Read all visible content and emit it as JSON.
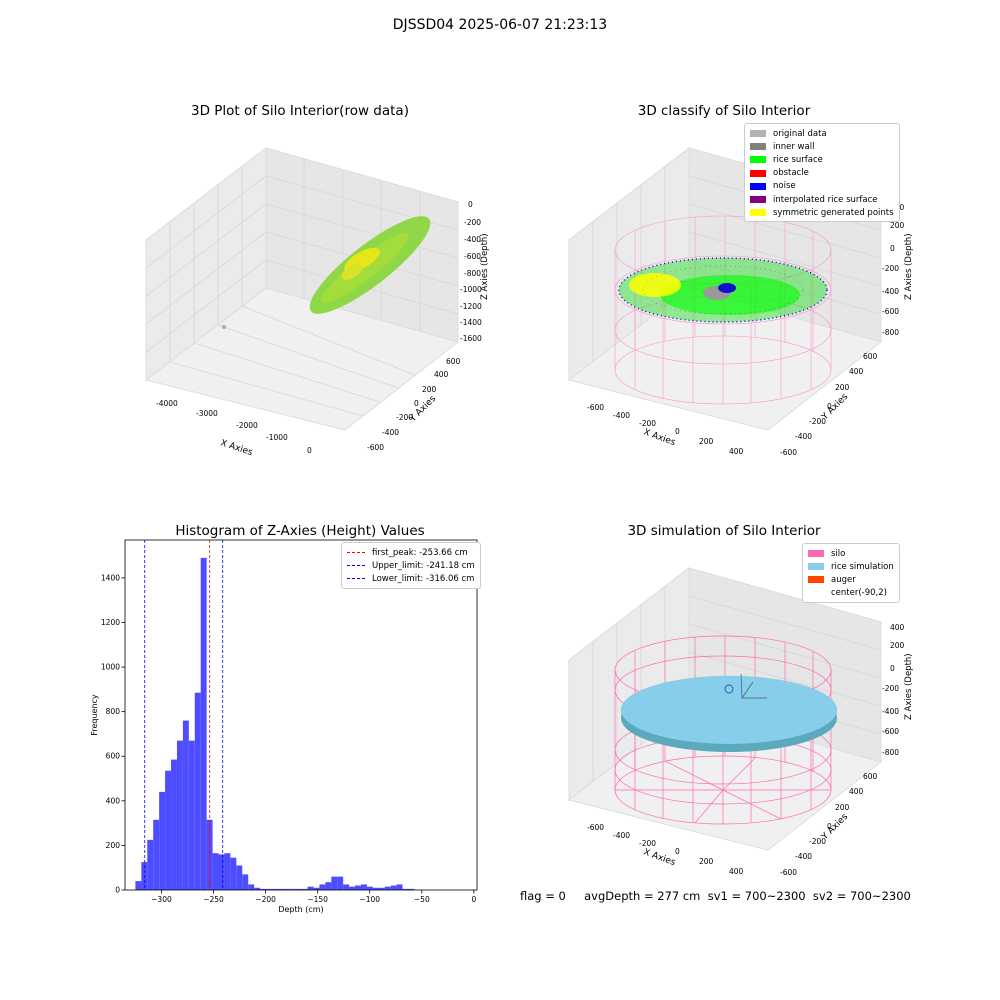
{
  "suptitle": "DJSSD04 2025-06-07 21:23:13",
  "panels": {
    "raw": {
      "title": "3D Plot of Silo Interior(row data)",
      "xlabel": "X Axies",
      "ylabel": "Y Axies",
      "zlabel": "Z Axies (Depth)",
      "xticks": [
        "-4000",
        "-3000",
        "-2000",
        "-1000",
        "0"
      ],
      "yticks": [
        "-600",
        "-400",
        "-200",
        "0",
        "200",
        "400",
        "600"
      ],
      "zticks": [
        "0",
        "-200",
        "-400",
        "-600",
        "-800",
        "-1000",
        "-1200",
        "-1400",
        "-1600"
      ]
    },
    "classify": {
      "title": "3D classify of Silo Interior",
      "xlabel": "X Axies",
      "ylabel": "Y Axies",
      "zlabel": "Z Axies (Depth)",
      "xticks": [
        "-600",
        "-400",
        "-200",
        "0",
        "200",
        "400"
      ],
      "yticks": [
        "-600",
        "-400",
        "-200",
        "0",
        "200",
        "400",
        "600"
      ],
      "zticks": [
        "400",
        "200",
        "0",
        "-200",
        "-400",
        "-600",
        "-800"
      ],
      "legend": [
        {
          "label": "original data",
          "color": "#b3b3b3"
        },
        {
          "label": "inner wall",
          "color": "#808080"
        },
        {
          "label": "rice surface",
          "color": "#00ff00"
        },
        {
          "label": "obstacle",
          "color": "#ff0000"
        },
        {
          "label": "noise",
          "color": "#0000ff"
        },
        {
          "label": "interpolated rice surface",
          "color": "#800080"
        },
        {
          "label": "symmetric generated points",
          "color": "#ffff00"
        }
      ]
    },
    "histogram": {
      "title": "Histogram of Z-Axies (Height) Values",
      "xlabel": "Depth (cm)",
      "ylabel": "Frequency",
      "legend": [
        {
          "label": "first_peak: -253.66 cm",
          "color": "#ff0000"
        },
        {
          "label": "Upper_limit: -241.18 cm",
          "color": "#0000ff"
        },
        {
          "label": "Lower_limit: -316.06 cm",
          "color": "#0000ff"
        }
      ]
    },
    "simulation": {
      "title": "3D simulation of Silo Interior",
      "xlabel": "X Axies",
      "ylabel": "Y Axies",
      "zlabel": "Z Axies (Depth)",
      "xticks": [
        "-600",
        "-400",
        "-200",
        "0",
        "200",
        "400"
      ],
      "yticks": [
        "-600",
        "-400",
        "-200",
        "0",
        "200",
        "400",
        "600"
      ],
      "zticks": [
        "400",
        "200",
        "0",
        "-200",
        "-400",
        "-600",
        "-800"
      ],
      "legend": [
        {
          "label": "silo",
          "color": "#ff69b4"
        },
        {
          "label": "rice simulation",
          "color": "#87ceeb"
        },
        {
          "label": "auger",
          "color": "#ff4500"
        },
        {
          "label": "center(-90,2)",
          "color": "#ffffff"
        }
      ]
    }
  },
  "footer": "flag = 0     avgDepth = 277 cm  sv1 = 700~2300  sv2 = 700~2300",
  "chart_data": {
    "type": "bar",
    "title": "Histogram of Z-Axies (Height) Values",
    "xlabel": "Depth (cm)",
    "ylabel": "Frequency",
    "xlim": [
      -335,
      3
    ],
    "ylim": [
      0,
      1570
    ],
    "xticks": [
      -300,
      -250,
      -200,
      -150,
      -100,
      -50,
      0
    ],
    "yticks": [
      0,
      200,
      400,
      600,
      800,
      1000,
      1200,
      1400
    ],
    "bin_width": 5.7,
    "bins": [
      [
        -325,
        40
      ],
      [
        -319.3,
        125
      ],
      [
        -313.6,
        225
      ],
      [
        -307.9,
        315
      ],
      [
        -302.2,
        440
      ],
      [
        -296.5,
        535
      ],
      [
        -290.8,
        585
      ],
      [
        -285.1,
        670
      ],
      [
        -279.4,
        760
      ],
      [
        -273.7,
        670
      ],
      [
        -268,
        885
      ],
      [
        -262.3,
        1490
      ],
      [
        -256.6,
        315
      ],
      [
        -250.9,
        165
      ],
      [
        -245.2,
        160
      ],
      [
        -239.5,
        165
      ],
      [
        -233.8,
        145
      ],
      [
        -228.1,
        110
      ],
      [
        -222.4,
        70
      ],
      [
        -216.7,
        25
      ],
      [
        -211,
        10
      ],
      [
        -205.3,
        5
      ],
      [
        -199.6,
        5
      ],
      [
        -193.9,
        5
      ],
      [
        -188.2,
        5
      ],
      [
        -182.5,
        5
      ],
      [
        -176.8,
        5
      ],
      [
        -171.1,
        5
      ],
      [
        -165.4,
        5
      ],
      [
        -159.7,
        15
      ],
      [
        -154,
        10
      ],
      [
        -148.3,
        25
      ],
      [
        -142.6,
        35
      ],
      [
        -136.9,
        60
      ],
      [
        -131.2,
        60
      ],
      [
        -125.5,
        25
      ],
      [
        -119.8,
        15
      ],
      [
        -114.1,
        20
      ],
      [
        -108.4,
        25
      ],
      [
        -102.7,
        15
      ],
      [
        -97,
        10
      ],
      [
        -91.3,
        10
      ],
      [
        -85.6,
        15
      ],
      [
        -79.9,
        20
      ],
      [
        -74.2,
        25
      ],
      [
        -68.5,
        5
      ],
      [
        -62.8,
        5
      ]
    ],
    "vlines": [
      {
        "name": "first_peak",
        "x": -253.66,
        "color": "#ff0000"
      },
      {
        "name": "Upper_limit",
        "x": -241.18,
        "color": "#0000ff"
      },
      {
        "name": "Lower_limit",
        "x": -316.06,
        "color": "#0000ff"
      }
    ],
    "bar_color": "#4d4dff",
    "legend_position": "top-right"
  }
}
